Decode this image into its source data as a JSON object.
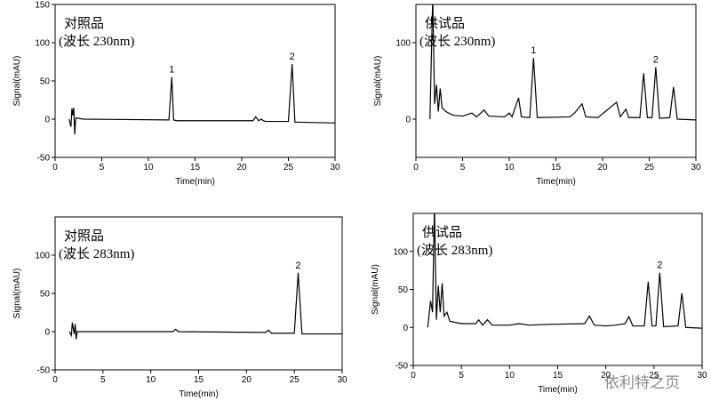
{
  "chart_data": [
    {
      "type": "line",
      "title": "对照品",
      "subtitle": "(波长 230nm)",
      "xlabel": "Time(min)",
      "ylabel": "Signal(mAU)",
      "xlim": [
        0,
        30
      ],
      "xticks": [
        0,
        5,
        10,
        15,
        20,
        25,
        30
      ],
      "ylim": [
        -50,
        150
      ],
      "yticks": [
        -50,
        0,
        50,
        100,
        150
      ],
      "color": "#000000",
      "x": [
        1.5,
        1.7,
        1.8,
        1.9,
        2.0,
        2.1,
        2.2,
        2.3,
        2.5,
        3,
        12.2,
        12.5,
        12.7,
        13,
        21.2,
        21.5,
        21.8,
        22.1,
        22.3,
        22.6,
        25,
        25.4,
        25.7,
        26,
        30
      ],
      "values": [
        0,
        -10,
        14,
        5,
        15,
        -20,
        0,
        2,
        1,
        0,
        -1,
        55,
        -1,
        -2,
        -2,
        3,
        -2,
        0,
        -2,
        -3,
        -3,
        72,
        -4,
        -4,
        -5
      ],
      "peaks": [
        {
          "label": "1",
          "x": 12.5,
          "y": 55
        },
        {
          "label": "2",
          "x": 25.4,
          "y": 72
        }
      ]
    },
    {
      "type": "line",
      "title": "供试品",
      "subtitle": "(波长 230nm)",
      "xlabel": "Time(min)",
      "ylabel": "Signal(mAU)",
      "xlim": [
        0,
        30
      ],
      "xticks": [
        0,
        5,
        10,
        15,
        20,
        25,
        30
      ],
      "ylim": [
        -50,
        150
      ],
      "yticks": [
        0,
        100
      ],
      "color": "#000000",
      "x": [
        1.5,
        1.8,
        2.0,
        2.2,
        2.4,
        2.6,
        2.8,
        3.2,
        3.5,
        4,
        5,
        6,
        6.5,
        7.3,
        7.8,
        9.5,
        10.0,
        10.3,
        11.0,
        11.3,
        12.2,
        12.6,
        13,
        16.5,
        17,
        17.8,
        18.2,
        19.5,
        21.5,
        21.9,
        22.5,
        22.8,
        24.0,
        24.4,
        24.8,
        25.3,
        25.7,
        26.1,
        27.2,
        27.6,
        28,
        30
      ],
      "values": [
        0,
        160,
        20,
        45,
        10,
        40,
        15,
        10,
        8,
        5,
        4,
        8,
        3,
        12,
        4,
        3,
        8,
        3,
        28,
        3,
        2,
        80,
        2,
        3,
        8,
        20,
        3,
        2,
        22,
        3,
        13,
        2,
        2,
        60,
        2,
        2,
        68,
        1,
        2,
        42,
        0,
        -1
      ],
      "peaks": [
        {
          "label": "1",
          "x": 12.6,
          "y": 80
        },
        {
          "label": "2",
          "x": 25.7,
          "y": 68
        }
      ]
    },
    {
      "type": "line",
      "title": "对照品",
      "subtitle": "(波长 283nm)",
      "xlabel": "Time(min)",
      "ylabel": "Signal(mAU)",
      "xlim": [
        0,
        30
      ],
      "xticks": [
        0,
        5,
        10,
        15,
        20,
        25,
        30
      ],
      "ylim": [
        -50,
        150
      ],
      "yticks": [
        -50,
        0,
        50,
        100
      ],
      "color": "#000000",
      "x": [
        1.5,
        1.7,
        1.8,
        2.0,
        2.1,
        2.2,
        2.3,
        3,
        12.3,
        12.6,
        12.9,
        22,
        22.3,
        22.6,
        25,
        25.4,
        25.8,
        30
      ],
      "values": [
        0,
        -5,
        12,
        -3,
        10,
        -10,
        0,
        0,
        0,
        3,
        0,
        -1,
        2,
        -2,
        -2,
        77,
        -3,
        -3
      ],
      "peaks": [
        {
          "label": "2",
          "x": 25.4,
          "y": 77
        }
      ]
    },
    {
      "type": "line",
      "title": "供试品",
      "subtitle": "(波长 283nm)",
      "xlabel": "Time(min)",
      "ylabel": "Signal(mAU)",
      "xlim": [
        0,
        30
      ],
      "xticks": [
        0,
        5,
        10,
        15,
        20,
        25,
        30
      ],
      "ylim": [
        -50,
        150
      ],
      "yticks": [
        -50,
        0,
        50,
        100
      ],
      "color": "#000000",
      "x": [
        1.5,
        1.8,
        2.0,
        2.2,
        2.4,
        2.6,
        2.8,
        3.0,
        3.2,
        3.5,
        3.8,
        5,
        6.5,
        6.8,
        7.2,
        7.7,
        8.2,
        10,
        11,
        12,
        14,
        17.8,
        18.3,
        18.8,
        20,
        21,
        22,
        22.4,
        22.8,
        24,
        24.4,
        24.8,
        25.2,
        25.6,
        26,
        27.5,
        27.9,
        28.3,
        30
      ],
      "values": [
        0,
        35,
        20,
        160,
        10,
        55,
        20,
        58,
        15,
        20,
        8,
        5,
        5,
        10,
        3,
        10,
        3,
        3,
        5,
        3,
        4,
        5,
        15,
        3,
        2,
        3,
        5,
        14,
        2,
        2,
        60,
        2,
        2,
        72,
        1,
        2,
        45,
        0,
        -1
      ],
      "peaks": [
        {
          "label": "2",
          "x": 25.6,
          "y": 72
        }
      ]
    }
  ],
  "watermark": "依利特之页"
}
